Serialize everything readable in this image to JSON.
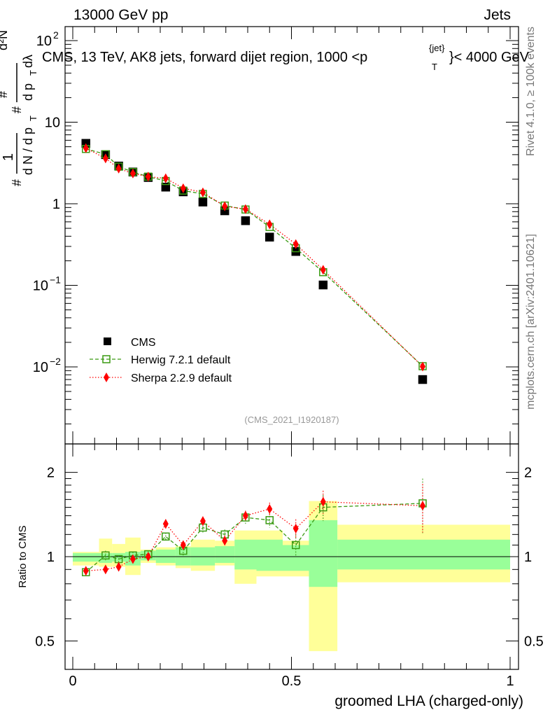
{
  "header": {
    "left": "13000 GeV pp",
    "right": "Jets"
  },
  "side": {
    "rivet": "Rivet 4.1.0, ≥ 100k events",
    "mcplots": "mcplots.cern.ch [arXiv:2401.10621]"
  },
  "ref_id": "(CMS_2021_I1920187)",
  "colors": {
    "cms": "#000000",
    "herwig": "#3a9a12",
    "sherpa": "#ff0000",
    "band_inner": "#99ff99",
    "band_outer": "#ffff99"
  },
  "chart_data": [
    {
      "type": "scatter",
      "panel": "main",
      "title": "CMS, 13 TeV, AK8 jets, forward dijet region, 1000 <p_T^{jet}< 4000 GeV",
      "ylabel": "1/(dN/dp_T) d²N/(dp_T dλ)",
      "yscale": "log",
      "ylim": [
        0.001,
        200
      ],
      "xlim": [
        0,
        1
      ],
      "yticks": [
        0.01,
        0.1,
        1,
        10,
        100
      ],
      "ytick_labels": [
        "10^{-2}",
        "10^{-1}",
        "1",
        "10",
        "10^{2}"
      ],
      "x_edges": [
        0.0,
        0.06,
        0.09,
        0.12,
        0.155,
        0.19,
        0.235,
        0.27,
        0.325,
        0.37,
        0.42,
        0.48,
        0.54,
        0.605,
        1.0
      ],
      "x": [
        0.03,
        0.075,
        0.105,
        0.1375,
        0.1725,
        0.2125,
        0.2525,
        0.2975,
        0.3475,
        0.395,
        0.45,
        0.51,
        0.5725,
        0.8
      ],
      "legend": [
        "CMS",
        "Herwig 7.2.1 default",
        "Sherpa 2.2.9 default"
      ],
      "series": [
        {
          "name": "CMS",
          "values": [
            5.5,
            4.0,
            2.9,
            2.45,
            2.1,
            1.6,
            1.4,
            1.05,
            0.82,
            0.62,
            0.39,
            0.26,
            0.101,
            0.007
          ]
        },
        {
          "name": "Herwig 7.2.1 default",
          "values": [
            4.7,
            4.05,
            2.85,
            2.45,
            2.15,
            1.9,
            1.45,
            1.32,
            0.95,
            0.85,
            0.52,
            0.285,
            0.145,
            0.0102
          ]
        },
        {
          "name": "Sherpa 2.2.9 default",
          "values": [
            4.8,
            3.6,
            2.7,
            2.35,
            2.15,
            2.05,
            1.55,
            1.38,
            0.93,
            0.86,
            0.56,
            0.32,
            0.155,
            0.0101
          ]
        }
      ]
    },
    {
      "type": "scatter",
      "panel": "ratio",
      "xlabel": "groomed LHA (charged-only)",
      "ylabel": "Ratio to CMS",
      "xlim": [
        0,
        1
      ],
      "ylim": [
        0.4,
        2.4
      ],
      "yticks": [
        0.5,
        1,
        2
      ],
      "ytick_labels": [
        "0.5",
        "1",
        "2"
      ],
      "xticks": [
        0,
        0.5,
        1
      ],
      "xtick_labels": [
        "0",
        "0.5",
        "1"
      ],
      "band_inner": [
        [
          0.96,
          1.03
        ],
        [
          0.95,
          1.03
        ],
        [
          0.96,
          1.03
        ],
        [
          0.93,
          1.04
        ],
        [
          0.97,
          1.05
        ],
        [
          0.95,
          1.06
        ],
        [
          0.93,
          1.08
        ],
        [
          0.93,
          1.08
        ],
        [
          0.95,
          1.09
        ],
        [
          0.9,
          1.15
        ],
        [
          0.89,
          1.15
        ],
        [
          0.89,
          1.1
        ],
        [
          0.78,
          1.35
        ],
        [
          0.9,
          1.15
        ]
      ],
      "band_outer": [
        [
          0.93,
          1.04
        ],
        [
          0.92,
          1.16
        ],
        [
          0.92,
          1.11
        ],
        [
          0.86,
          1.17
        ],
        [
          0.95,
          1.06
        ],
        [
          0.93,
          1.08
        ],
        [
          0.91,
          1.09
        ],
        [
          0.89,
          1.15
        ],
        [
          0.93,
          1.14
        ],
        [
          0.8,
          1.24
        ],
        [
          0.85,
          1.24
        ],
        [
          0.85,
          1.14
        ],
        [
          0.46,
          1.58
        ],
        [
          0.81,
          1.3
        ]
      ],
      "series": [
        {
          "name": "Herwig 7.2.1 default",
          "values": [
            0.88,
            1.01,
            0.98,
            1.01,
            1.02,
            1.18,
            1.05,
            1.27,
            1.2,
            1.38,
            1.35,
            1.1,
            1.5,
            1.55
          ],
          "errors": [
            0.02,
            0.04,
            0.03,
            0.03,
            0.03,
            0.04,
            0.04,
            0.05,
            0.05,
            0.07,
            0.08,
            0.1,
            0.16,
            0.35
          ]
        },
        {
          "name": "Sherpa 2.2.9 default",
          "values": [
            0.89,
            0.9,
            0.92,
            0.98,
            1.0,
            1.31,
            1.1,
            1.34,
            1.14,
            1.4,
            1.48,
            1.26,
            1.57,
            1.52
          ],
          "errors": [
            0.02,
            0.03,
            0.03,
            0.03,
            0.03,
            0.05,
            0.04,
            0.05,
            0.05,
            0.06,
            0.08,
            0.1,
            0.15,
            0.3
          ]
        }
      ]
    }
  ]
}
